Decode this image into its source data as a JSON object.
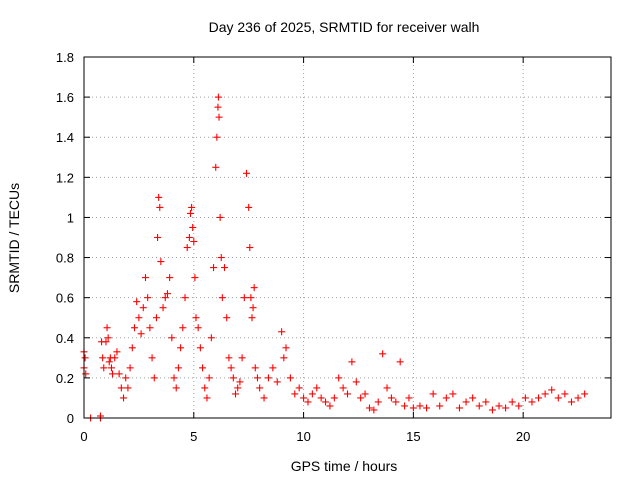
{
  "chart_data": {
    "type": "scatter",
    "title": "Day 236 of 2025, SRMTID for receiver walh",
    "xlabel": "GPS time / hours",
    "ylabel": "SRMTID / TECUs",
    "xlim": [
      0,
      24
    ],
    "ylim": [
      0,
      1.8
    ],
    "xticks": [
      0,
      5,
      10,
      15,
      20
    ],
    "xtick_labels": [
      "0",
      "5",
      "10",
      "15",
      "20"
    ],
    "yticks": [
      0,
      0.2,
      0.4,
      0.6,
      0.8,
      1.0,
      1.2,
      1.4,
      1.6,
      1.8
    ],
    "ytick_labels": [
      "0",
      "0.2",
      "0.4",
      "0.6",
      "0.8",
      "1",
      "1.2",
      "1.4",
      "1.6",
      "1.8"
    ],
    "grid": true,
    "marker": "+",
    "series": [
      {
        "name": "SRMTID",
        "color": "#ff0000",
        "x": [
          0.0,
          0.0,
          0.05,
          0.08,
          0.3,
          0.75,
          0.75,
          0.8,
          0.85,
          0.9,
          1.0,
          1.05,
          1.1,
          1.15,
          1.2,
          1.25,
          1.3,
          1.4,
          1.5,
          1.6,
          1.7,
          1.8,
          1.9,
          2.0,
          2.1,
          2.2,
          2.3,
          2.4,
          2.5,
          2.6,
          2.7,
          2.8,
          2.9,
          3.0,
          3.1,
          3.2,
          3.3,
          3.35,
          3.4,
          3.45,
          3.5,
          3.6,
          3.7,
          3.8,
          3.9,
          4.0,
          4.1,
          4.2,
          4.3,
          4.4,
          4.5,
          4.6,
          4.7,
          4.8,
          4.85,
          4.9,
          4.95,
          5.0,
          5.05,
          5.1,
          5.2,
          5.3,
          5.4,
          5.5,
          5.6,
          5.7,
          5.8,
          5.9,
          6.0,
          6.05,
          6.1,
          6.12,
          6.15,
          6.2,
          6.25,
          6.3,
          6.4,
          6.5,
          6.6,
          6.7,
          6.8,
          6.9,
          7.0,
          7.1,
          7.2,
          7.3,
          7.4,
          7.5,
          7.55,
          7.6,
          7.65,
          7.7,
          7.75,
          7.8,
          7.9,
          8.0,
          8.2,
          8.4,
          8.6,
          8.8,
          9.0,
          9.1,
          9.2,
          9.4,
          9.6,
          9.8,
          10.0,
          10.2,
          10.4,
          10.6,
          10.8,
          11.0,
          11.2,
          11.4,
          11.6,
          11.8,
          12.0,
          12.2,
          12.4,
          12.6,
          12.8,
          13.0,
          13.2,
          13.4,
          13.6,
          13.8,
          14.0,
          14.2,
          14.4,
          14.6,
          14.8,
          15.0,
          15.3,
          15.6,
          15.9,
          16.2,
          16.5,
          16.8,
          17.1,
          17.4,
          17.7,
          18.0,
          18.3,
          18.6,
          18.9,
          19.2,
          19.5,
          19.8,
          20.1,
          20.4,
          20.7,
          21.0,
          21.3,
          21.6,
          21.9,
          22.2,
          22.5,
          22.8
        ],
        "y": [
          0.33,
          0.25,
          0.3,
          0.22,
          0.0,
          0.0,
          0.01,
          0.38,
          0.3,
          0.25,
          0.38,
          0.45,
          0.4,
          0.28,
          0.3,
          0.25,
          0.22,
          0.3,
          0.33,
          0.22,
          0.15,
          0.1,
          0.2,
          0.15,
          0.25,
          0.35,
          0.45,
          0.58,
          0.5,
          0.42,
          0.55,
          0.7,
          0.6,
          0.45,
          0.3,
          0.2,
          0.5,
          0.9,
          1.1,
          1.05,
          0.78,
          0.55,
          0.6,
          0.62,
          0.7,
          0.4,
          0.2,
          0.15,
          0.25,
          0.35,
          0.45,
          0.6,
          0.85,
          0.9,
          1.02,
          1.05,
          0.95,
          0.88,
          0.7,
          0.5,
          0.45,
          0.35,
          0.25,
          0.15,
          0.1,
          0.2,
          0.4,
          0.75,
          1.25,
          1.4,
          1.55,
          1.6,
          1.5,
          1.0,
          0.8,
          0.6,
          0.75,
          0.5,
          0.3,
          0.25,
          0.2,
          0.12,
          0.15,
          0.18,
          0.3,
          0.6,
          1.22,
          1.05,
          0.85,
          0.6,
          0.5,
          0.55,
          0.65,
          0.25,
          0.2,
          0.15,
          0.1,
          0.2,
          0.25,
          0.18,
          0.43,
          0.3,
          0.35,
          0.2,
          0.12,
          0.15,
          0.1,
          0.08,
          0.12,
          0.15,
          0.1,
          0.08,
          0.06,
          0.1,
          0.2,
          0.15,
          0.12,
          0.28,
          0.18,
          0.1,
          0.12,
          0.05,
          0.04,
          0.08,
          0.32,
          0.15,
          0.1,
          0.08,
          0.28,
          0.06,
          0.1,
          0.05,
          0.06,
          0.05,
          0.12,
          0.06,
          0.1,
          0.12,
          0.05,
          0.08,
          0.1,
          0.06,
          0.08,
          0.04,
          0.06,
          0.05,
          0.08,
          0.06,
          0.1,
          0.08,
          0.1,
          0.12,
          0.14,
          0.1,
          0.12,
          0.08,
          0.1,
          0.12
        ]
      }
    ]
  }
}
